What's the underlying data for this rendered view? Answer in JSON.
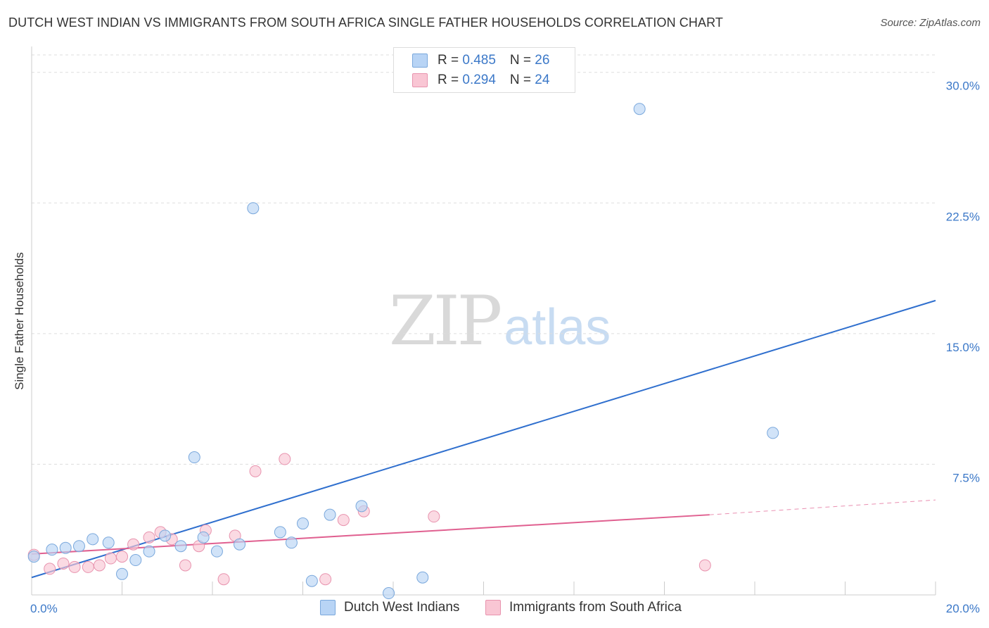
{
  "title": "DUTCH WEST INDIAN VS IMMIGRANTS FROM SOUTH AFRICA SINGLE FATHER HOUSEHOLDS CORRELATION CHART",
  "source": "Source: ZipAtlas.com",
  "watermark": {
    "zip": "ZIP",
    "atlas": "atlas"
  },
  "legend_top": {
    "rows": [
      {
        "r_label": "R = ",
        "r_value": "0.485",
        "n_label": "N = ",
        "n_value": "26"
      },
      {
        "r_label": "R = ",
        "r_value": "0.294",
        "n_label": "N = ",
        "n_value": "24"
      }
    ]
  },
  "legend_bottom": [
    "Dutch West Indians",
    "Immigrants from South Africa"
  ],
  "colors": {
    "blue_fill": "#b8d4f5",
    "blue_stroke": "#7aa8dc",
    "blue_line": "#2f6fce",
    "pink_fill": "#f9c6d4",
    "pink_stroke": "#e893ae",
    "pink_line": "#e06090",
    "axis_text": "#3b78c8",
    "grid": "#dddddd"
  },
  "chart_data": {
    "type": "scatter",
    "title": "DUTCH WEST INDIAN VS IMMIGRANTS FROM SOUTH AFRICA SINGLE FATHER HOUSEHOLDS CORRELATION CHART",
    "xlabel": "",
    "ylabel": "Single Father Households",
    "xlim": [
      0,
      20
    ],
    "ylim": [
      0,
      31
    ],
    "x_tick_labels": [
      "0.0%",
      "20.0%"
    ],
    "y_ticks": [
      7.5,
      15.0,
      22.5,
      30.0
    ],
    "y_tick_labels": [
      "7.5%",
      "15.0%",
      "22.5%",
      "30.0%"
    ],
    "grid": true,
    "series": [
      {
        "name": "Dutch West Indians",
        "color": "#b8d4f5",
        "R": 0.485,
        "N": 26,
        "points": [
          [
            0.05,
            2.2
          ],
          [
            0.45,
            2.6
          ],
          [
            0.75,
            2.7
          ],
          [
            1.05,
            2.8
          ],
          [
            1.35,
            3.2
          ],
          [
            1.7,
            3.0
          ],
          [
            2.0,
            1.2
          ],
          [
            2.3,
            2.0
          ],
          [
            2.6,
            2.5
          ],
          [
            2.95,
            3.4
          ],
          [
            3.3,
            2.8
          ],
          [
            3.6,
            7.9
          ],
          [
            3.8,
            3.3
          ],
          [
            4.1,
            2.5
          ],
          [
            4.6,
            2.9
          ],
          [
            4.9,
            22.2
          ],
          [
            5.5,
            3.6
          ],
          [
            5.75,
            3.0
          ],
          [
            6.0,
            4.1
          ],
          [
            6.2,
            0.8
          ],
          [
            6.6,
            4.6
          ],
          [
            7.3,
            5.1
          ],
          [
            7.9,
            0.1
          ],
          [
            8.65,
            1.0
          ],
          [
            13.45,
            27.9
          ],
          [
            16.4,
            9.3
          ]
        ],
        "trendline": {
          "x": [
            0,
            20
          ],
          "y": [
            1.0,
            16.9
          ]
        }
      },
      {
        "name": "Immigrants from South Africa",
        "color": "#f9c6d4",
        "R": 0.294,
        "N": 24,
        "points": [
          [
            0.05,
            2.3
          ],
          [
            0.4,
            1.5
          ],
          [
            0.7,
            1.8
          ],
          [
            0.95,
            1.6
          ],
          [
            1.25,
            1.6
          ],
          [
            1.5,
            1.7
          ],
          [
            1.75,
            2.1
          ],
          [
            2.0,
            2.2
          ],
          [
            2.25,
            2.9
          ],
          [
            2.6,
            3.3
          ],
          [
            2.85,
            3.6
          ],
          [
            3.1,
            3.2
          ],
          [
            3.4,
            1.7
          ],
          [
            3.7,
            2.8
          ],
          [
            3.85,
            3.7
          ],
          [
            4.25,
            0.9
          ],
          [
            4.5,
            3.4
          ],
          [
            4.95,
            7.1
          ],
          [
            5.6,
            7.8
          ],
          [
            6.5,
            0.9
          ],
          [
            6.9,
            4.3
          ],
          [
            7.35,
            4.8
          ],
          [
            8.9,
            4.5
          ],
          [
            14.9,
            1.7
          ]
        ],
        "trendline": {
          "x": [
            0,
            15
          ],
          "y": [
            2.35,
            4.6
          ]
        },
        "trendline_dashed": {
          "x": [
            15,
            20
          ],
          "y": [
            4.6,
            5.45
          ]
        }
      }
    ]
  }
}
